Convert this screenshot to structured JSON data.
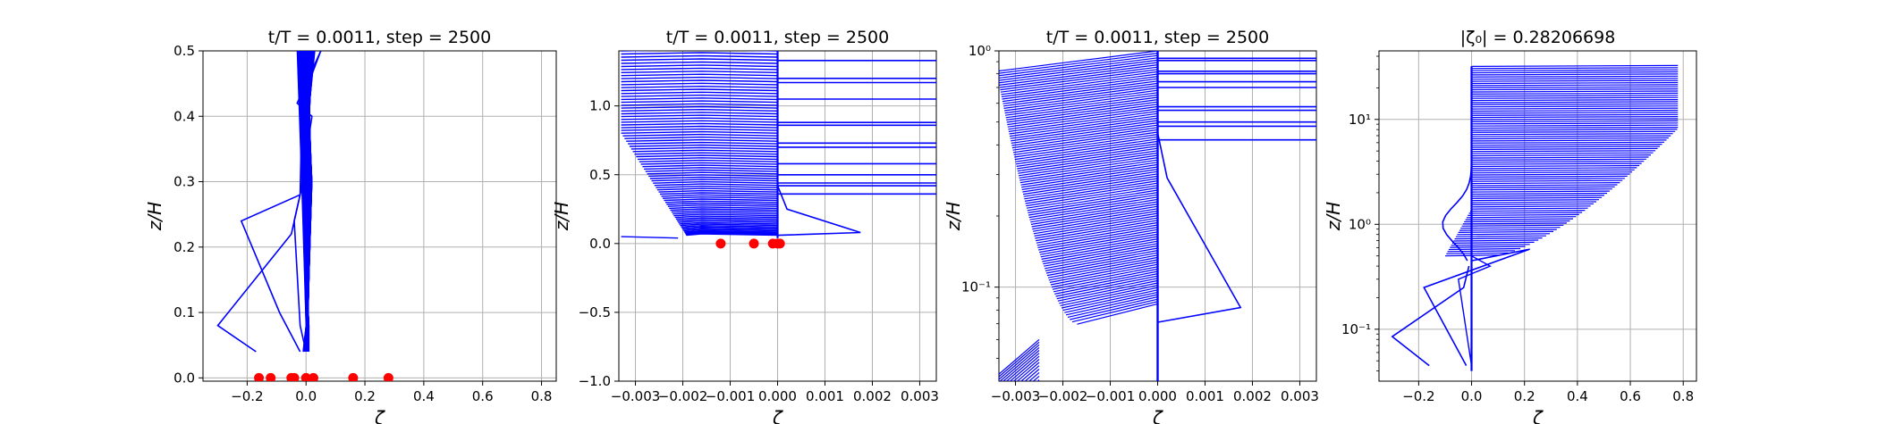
{
  "chart_data": [
    {
      "type": "line",
      "title": "t/T = 0.0011, step = 2500",
      "xlabel": "ζ",
      "ylabel": "z/H",
      "xlim": [
        -0.35,
        0.85
      ],
      "ylim": [
        -0.005,
        0.5
      ],
      "xticks": [
        -0.2,
        0.0,
        0.2,
        0.4,
        0.6,
        0.8
      ],
      "xtick_labels": [
        "−0.2",
        "0.0",
        "0.2",
        "0.4",
        "0.6",
        "0.8"
      ],
      "yticks": [
        0.0,
        0.1,
        0.2,
        0.3,
        0.4,
        0.5
      ],
      "ytick_labels": [
        "0.0",
        "0.1",
        "0.2",
        "0.3",
        "0.4",
        "0.5"
      ],
      "grid": true,
      "line_color": "#0000ff",
      "marker_color": "#ff0000",
      "points": {
        "x": [
          -0.16,
          -0.12,
          -0.04,
          -0.05,
          0.0,
          0.025,
          0.16,
          0.28
        ],
        "y": [
          0.0,
          0.0,
          0.0,
          0.0,
          0.0,
          0.0,
          0.0,
          0.0
        ]
      }
    },
    {
      "type": "line",
      "title": "t/T = 0.0011, step = 2500",
      "xlabel": "ζ",
      "ylabel": "z/H",
      "xlim": [
        -0.00335,
        0.00335
      ],
      "ylim": [
        -1.0,
        1.4
      ],
      "xticks": [
        -0.003,
        -0.002,
        -0.001,
        0.0,
        0.001,
        0.002,
        0.003
      ],
      "xtick_labels": [
        "−0.003",
        "−0.002",
        "−0.001",
        "0.000",
        "0.001",
        "0.002",
        "0.003"
      ],
      "yticks": [
        -1.0,
        -0.5,
        0.0,
        0.5,
        1.0
      ],
      "ytick_labels": [
        "−1.0",
        "−0.5",
        "0.0",
        "0.5",
        "1.0"
      ],
      "grid": true,
      "line_color": "#0000ff",
      "marker_color": "#ff0000",
      "points": {
        "x": [
          -0.0012,
          -0.0005,
          0.0,
          -0.0001,
          5e-05
        ],
        "y": [
          0.0,
          0.0,
          0.0,
          0.0,
          0.0
        ]
      }
    },
    {
      "type": "line",
      "title": "t/T = 0.0011, step = 2500",
      "xlabel": "ζ",
      "ylabel": "z/H",
      "xscale": "linear",
      "yscale": "log",
      "xlim": [
        -0.00335,
        0.00335
      ],
      "ylim": [
        0.04,
        1.0
      ],
      "xticks": [
        -0.003,
        -0.002,
        -0.001,
        0.0,
        0.001,
        0.002,
        0.003
      ],
      "xtick_labels": [
        "−0.003",
        "−0.002",
        "−0.001",
        "0.000",
        "0.001",
        "0.002",
        "0.003"
      ],
      "yticks": [
        0.1,
        1.0
      ],
      "ytick_labels": [
        "10⁻¹",
        "10⁰"
      ],
      "grid": true,
      "line_color": "#0000ff"
    },
    {
      "type": "line",
      "title": "|ζ₀| = 0.28206698",
      "xlabel": "ζ",
      "ylabel": "z/H",
      "xscale": "linear",
      "yscale": "log",
      "xlim": [
        -0.35,
        0.85
      ],
      "ylim": [
        0.032,
        45
      ],
      "xticks": [
        -0.2,
        0.0,
        0.2,
        0.4,
        0.6,
        0.8
      ],
      "xtick_labels": [
        "−0.2",
        "0.0",
        "0.2",
        "0.4",
        "0.6",
        "0.8"
      ],
      "yticks": [
        0.1,
        1.0,
        10.0
      ],
      "ytick_labels": [
        "10⁻¹",
        "10⁰",
        "10¹"
      ],
      "grid": true,
      "line_color": "#0000ff"
    }
  ]
}
